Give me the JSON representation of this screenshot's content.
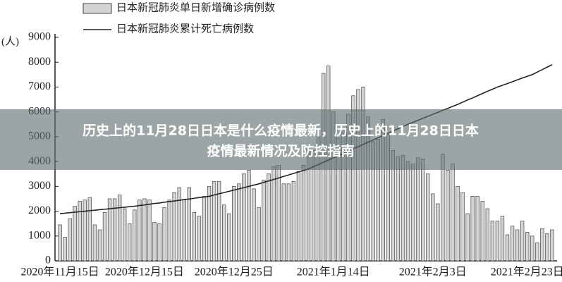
{
  "chart_data": {
    "type": "bar",
    "y_label": "(人)",
    "x": [
      0,
      1,
      2,
      3,
      4,
      5,
      6,
      7,
      8,
      9,
      10,
      11,
      12,
      13,
      14,
      15,
      16,
      17,
      18,
      19,
      20,
      21,
      22,
      23,
      24,
      25,
      26,
      27,
      28,
      29,
      30,
      31,
      32,
      33,
      34,
      35,
      36,
      37,
      38,
      39,
      40,
      41,
      42,
      43,
      44,
      45,
      46,
      47,
      48,
      49,
      50,
      51,
      52,
      53,
      54,
      55,
      56,
      57,
      58,
      59,
      60,
      61,
      62,
      63,
      64,
      65,
      66,
      67,
      68,
      69,
      70,
      71,
      72,
      73,
      74,
      75,
      76,
      77,
      78,
      79,
      80,
      81,
      82,
      83,
      84,
      85,
      86,
      87,
      88,
      89,
      90,
      91,
      92,
      93,
      94,
      95,
      96,
      97,
      98,
      99
    ],
    "xlim": [
      -1,
      100
    ],
    "xticks": [
      {
        "value": 0,
        "label": "2020年11月15日"
      },
      {
        "value": 17,
        "label": "2020年12月15日"
      },
      {
        "value": 35,
        "label": "2020年12月25日"
      },
      {
        "value": 55,
        "label": "2021年1月14日"
      },
      {
        "value": 75,
        "label": "2021年2月3日"
      },
      {
        "value": 94,
        "label": "2021年2月23日"
      }
    ],
    "ylim": [
      0,
      9000
    ],
    "yticks": [
      0,
      1000,
      2000,
      3000,
      4000,
      5000,
      6000,
      7000,
      8000,
      9000
    ],
    "series": [
      {
        "name": "日本新冠肺炎单日新增确诊病例数",
        "type": "bar",
        "color": "#d4d4d4",
        "values": [
          1450,
          950,
          1700,
          2200,
          2400,
          2450,
          2550,
          1450,
          1250,
          1950,
          2500,
          2500,
          2650,
          2100,
          1500,
          2050,
          2450,
          2500,
          2450,
          1550,
          1500,
          2150,
          2450,
          2750,
          2950,
          2450,
          2950,
          1950,
          1800,
          2600,
          3000,
          3200,
          3200,
          2250,
          1900,
          3000,
          3100,
          3500,
          3650,
          2900,
          2150,
          3250,
          3500,
          3800,
          3850,
          3100,
          3100,
          3200,
          3600,
          3850,
          4500,
          4450,
          5000,
          7550,
          7850,
          6000,
          4950,
          5300,
          5900,
          6650,
          6900,
          7000,
          5800,
          4800,
          4900,
          5700,
          5100,
          4450,
          4200,
          4250,
          4000,
          3900,
          4150,
          4100,
          3500,
          2700,
          2300,
          4300,
          3650,
          3900,
          3000,
          2750,
          1900,
          2600,
          2600,
          2400,
          2100,
          1600,
          1600,
          1800,
          1050,
          1400,
          1250,
          1600,
          1150,
          1000,
          730,
          1300,
          1100,
          1250
        ]
      },
      {
        "name": "日本新冠肺炎累计死亡病例数",
        "type": "line",
        "color": "#222222",
        "values": [
          1900,
          1920,
          1940,
          1960,
          1980,
          2000,
          2020,
          2040,
          2060,
          2080,
          2100,
          2120,
          2140,
          2160,
          2180,
          2200,
          2230,
          2250,
          2280,
          2310,
          2330,
          2360,
          2390,
          2410,
          2440,
          2470,
          2490,
          2520,
          2550,
          2570,
          2600,
          2650,
          2700,
          2750,
          2800,
          2850,
          2900,
          2950,
          3000,
          3050,
          3100,
          3160,
          3220,
          3280,
          3340,
          3400,
          3460,
          3520,
          3580,
          3640,
          3700,
          3790,
          3880,
          3970,
          4060,
          4150,
          4240,
          4330,
          4420,
          4510,
          4600,
          4690,
          4780,
          4870,
          4960,
          5050,
          5140,
          5230,
          5320,
          5410,
          5500,
          5580,
          5660,
          5740,
          5820,
          5900,
          5980,
          6060,
          6140,
          6220,
          6300,
          6390,
          6480,
          6560,
          6650,
          6740,
          6830,
          6910,
          7000,
          7070,
          7140,
          7210,
          7290,
          7360,
          7430,
          7500,
          7600,
          7700,
          7800,
          7900
        ]
      }
    ]
  },
  "headline": [
    "历史上的11月28日日本是什么疫情最新，历史上的11月28日日本",
    "疫情最新情况及防控指南"
  ]
}
